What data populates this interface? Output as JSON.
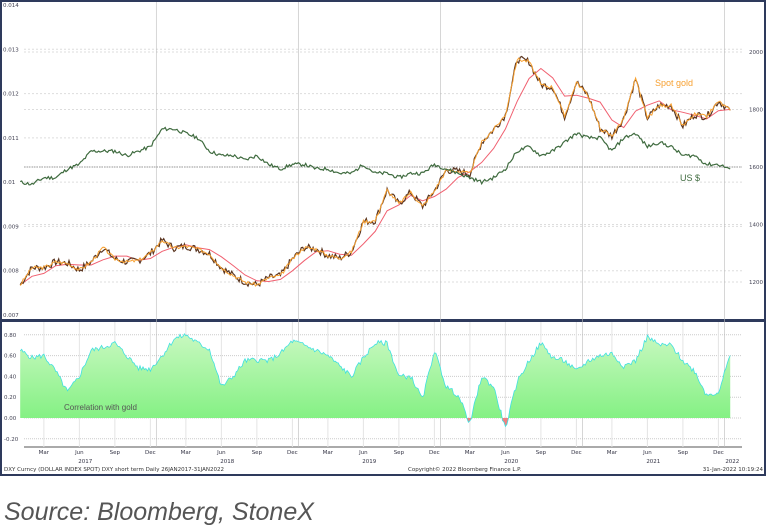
{
  "chart_data": {
    "type": "line",
    "top_panel": {
      "left_axis": {
        "ticks": [
          "0.014",
          "0.013",
          "0.012",
          "0.011",
          "0.01",
          "0.009",
          "0.008",
          "0.007"
        ],
        "range": [
          0.007,
          0.014
        ]
      },
      "right_axis": {
        "ticks": [
          "2000",
          "1800",
          "1600",
          "1400",
          "1200"
        ],
        "range": [
          1085,
          2100
        ]
      },
      "reference_line": {
        "left_value": 0.0104,
        "right_value": 1600
      },
      "series": [
        {
          "name": "Spot gold",
          "axis": "right",
          "color": "#f7a030",
          "x": [
            "2017-01",
            "2017-02",
            "2017-03",
            "2017-04",
            "2017-05",
            "2017-06",
            "2017-07",
            "2017-08",
            "2017-09",
            "2017-10",
            "2017-11",
            "2017-12",
            "2018-01",
            "2018-02",
            "2018-03",
            "2018-04",
            "2018-05",
            "2018-06",
            "2018-07",
            "2018-08",
            "2018-09",
            "2018-10",
            "2018-11",
            "2018-12",
            "2019-01",
            "2019-02",
            "2019-03",
            "2019-04",
            "2019-05",
            "2019-06",
            "2019-07",
            "2019-08",
            "2019-09",
            "2019-10",
            "2019-11",
            "2019-12",
            "2020-01",
            "2020-02",
            "2020-03",
            "2020-04",
            "2020-05",
            "2020-06",
            "2020-07",
            "2020-08",
            "2020-09",
            "2020-10",
            "2020-11",
            "2020-12",
            "2021-01",
            "2021-02",
            "2021-03",
            "2021-04",
            "2021-05",
            "2021-06",
            "2021-07",
            "2021-08",
            "2021-09",
            "2021-10",
            "2021-11",
            "2021-12",
            "2022-01"
          ],
          "values": [
            1190,
            1250,
            1250,
            1270,
            1265,
            1242,
            1270,
            1320,
            1280,
            1270,
            1275,
            1300,
            1345,
            1318,
            1325,
            1315,
            1298,
            1250,
            1223,
            1200,
            1190,
            1215,
            1222,
            1280,
            1320,
            1315,
            1292,
            1283,
            1305,
            1410,
            1413,
            1520,
            1472,
            1512,
            1463,
            1517,
            1589,
            1585,
            1577,
            1686,
            1730,
            1781,
            1975,
            1967,
            1886,
            1878,
            1776,
            1895,
            1848,
            1734,
            1708,
            1769,
            1906,
            1770,
            1814,
            1814,
            1743,
            1783,
            1775,
            1829,
            1797
          ]
        },
        {
          "name": "US $",
          "axis": "left",
          "color": "#3f6b3f",
          "values": [
            0.01,
            0.00995,
            0.0101,
            0.0101,
            0.0103,
            0.0104,
            0.0107,
            0.0107,
            0.0107,
            0.0106,
            0.0107,
            0.0108,
            0.0112,
            0.0112,
            0.0111,
            0.011,
            0.0107,
            0.0106,
            0.0106,
            0.0105,
            0.0106,
            0.0104,
            0.0103,
            0.0104,
            0.0104,
            0.0103,
            0.0103,
            0.0102,
            0.0102,
            0.0104,
            0.0102,
            0.0102,
            0.0101,
            0.0102,
            0.0102,
            0.0104,
            0.0103,
            0.0102,
            0.0101,
            0.01,
            0.0101,
            0.0103,
            0.0107,
            0.0108,
            0.0106,
            0.0107,
            0.0109,
            0.0111,
            0.011,
            0.011,
            0.0107,
            0.011,
            0.0111,
            0.0108,
            0.0109,
            0.0108,
            0.0106,
            0.0106,
            0.0104,
            0.0104,
            0.0103
          ]
        }
      ]
    },
    "bottom_panel": {
      "axis": {
        "ticks": [
          "0.80",
          "0.60",
          "0.40",
          "0.20",
          "0.00",
          "-0.20"
        ],
        "range": [
          -0.28,
          0.85
        ]
      },
      "label": "Correlation with gold",
      "color_positive": "#7ef07e",
      "color_negative": "#f08080",
      "line_color": "#40e0e0",
      "values": [
        0.65,
        0.58,
        0.6,
        0.45,
        0.25,
        0.4,
        0.65,
        0.68,
        0.72,
        0.6,
        0.48,
        0.47,
        0.6,
        0.76,
        0.8,
        0.72,
        0.66,
        0.3,
        0.4,
        0.55,
        0.56,
        0.55,
        0.62,
        0.74,
        0.7,
        0.65,
        0.6,
        0.5,
        0.4,
        0.58,
        0.72,
        0.72,
        0.4,
        0.4,
        0.18,
        0.65,
        0.3,
        0.22,
        -0.05,
        0.4,
        0.3,
        -0.1,
        0.35,
        0.55,
        0.72,
        0.58,
        0.55,
        0.45,
        0.55,
        0.6,
        0.62,
        0.5,
        0.55,
        0.78,
        0.7,
        0.7,
        0.55,
        0.45,
        0.22,
        0.25,
        0.6
      ]
    },
    "x_axis": {
      "months": [
        "Mar",
        "Jun",
        "Sep",
        "Dec",
        "Mar",
        "Jun",
        "Sep",
        "Dec",
        "Mar",
        "Jun",
        "Sep",
        "Dec",
        "Mar",
        "Jun",
        "Sep",
        "Dec",
        "Mar",
        "Jun",
        "Sep",
        "Dec"
      ],
      "years": [
        "2017",
        "2018",
        "2019",
        "2020",
        "2021",
        "2022"
      ]
    }
  },
  "footer": {
    "left": "DXY Curncy (DOLLAR INDEX SPOT) DXY short term  Daily 26JAN2017-31JAN2022",
    "center": "Copyright© 2022 Bloomberg Finance L.P.",
    "right": "31-Jan-2022 10:19:24"
  },
  "source": "Source: Bloomberg, StoneX"
}
